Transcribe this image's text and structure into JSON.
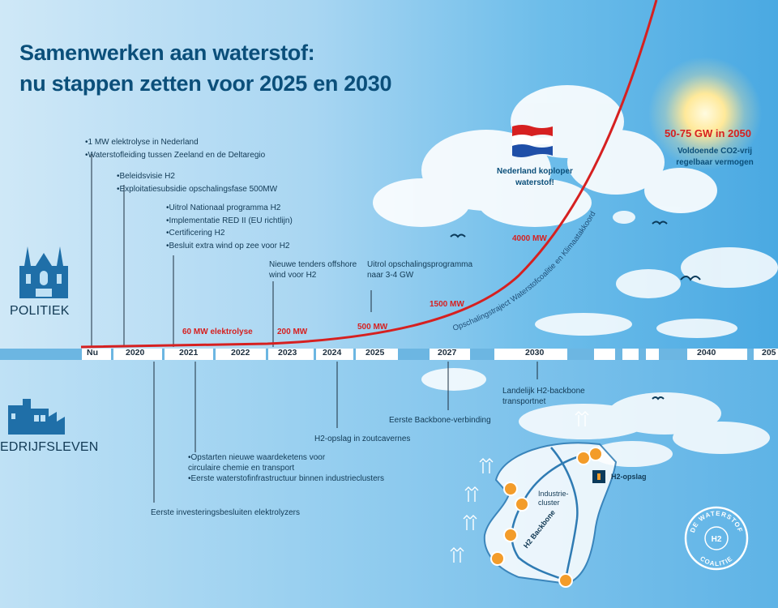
{
  "title": {
    "line1": "Samenwerken aan waterstof:",
    "line2": "nu stappen zetten voor 2025 en 2030"
  },
  "sections": {
    "politiek": "POLITIEK",
    "bedrijfsleven": "EDRIJFSLEVEN"
  },
  "timeline": {
    "ticks": [
      "Nu",
      "2020",
      "2021",
      "2022",
      "2023",
      "2024",
      "2025",
      "2027",
      "2030",
      "2040",
      "205"
    ]
  },
  "politiek_events": {
    "nu": [
      "1 MW elektrolyse in Nederland",
      "Waterstofleiding tussen Zeeland en de Deltaregio"
    ],
    "y2020": [
      "Beleidsvisie H2",
      "Exploitatiesubsidie opschalingsfase 500MW"
    ],
    "y2021": [
      "Uitrol Nationaal programma H2",
      "Implementatie RED II (EU richtlijn)",
      "Certificering H2",
      "Besluit extra wind op zee voor H2"
    ],
    "y2023": "Nieuwe tenders offshore wind voor H2",
    "y2025": "Uitrol opschalingsprogramma naar 3-4 GW"
  },
  "capacity_labels": {
    "mw60": "60 MW elektrolyse",
    "mw200": "200 MW",
    "mw500": "500 MW",
    "mw1500": "1500 MW",
    "mw4000": "4000 MW"
  },
  "curve_label": "Opschalingstraject Waterstofcoalitie en Klimaatakkoord",
  "flag_text": "Nederland koploper waterstof!",
  "goal": {
    "title": "50-75 GW in 2050",
    "sub": "Voldoende CO2-vrij regelbaar vermogen"
  },
  "bedrijfsleven_events": {
    "e2020": "Eerste investeringsbesluiten elektrolyzers",
    "e2021": [
      "Opstarten nieuwe waardeketens voor circulaire chemie en transport",
      "Eerste waterstofinfrastructuur binnen industrieclusters"
    ],
    "e2024": "H2-opslag in zoutcavernes",
    "e2027": "Eerste Backbone-verbinding",
    "e2030": "Landelijk H2-backbone transportnet"
  },
  "map": {
    "storage_label": "H2-opslag",
    "cluster_label": "Industrie-cluster",
    "backbone_label": "H2 Backbone"
  },
  "seal": {
    "top": "DE WATERSTOF",
    "bottom": "COALITIE",
    "center": "H2"
  },
  "colors": {
    "title": "#0b4f7a",
    "curve": "#d62020",
    "building": "#1f6fa8",
    "hub": "#f39c2a"
  },
  "icons": [
    "church-icon",
    "factory-icon",
    "dutch-flag-icon",
    "sun-icon",
    "bird-icon",
    "wind-turbine-icon",
    "hub-icon",
    "storage-icon",
    "netherlands-map",
    "coalition-seal-logo"
  ]
}
